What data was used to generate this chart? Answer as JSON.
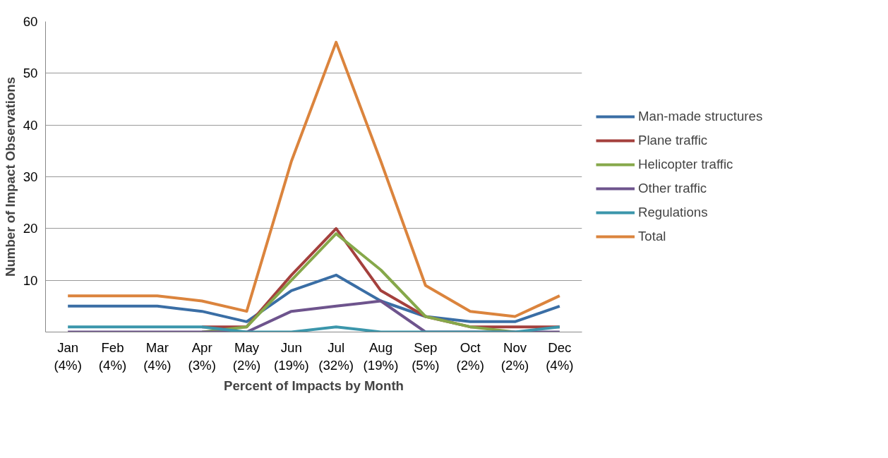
{
  "chart_data": {
    "type": "line",
    "xlabel": "Percent of Impacts by Month",
    "ylabel": "Number of Impact Observations",
    "categories": [
      "Jan\n(4%)",
      "Feb\n(4%)",
      "Mar\n(4%)",
      "Apr\n(3%)",
      "May\n(2%)",
      "Jun\n(19%)",
      "Jul\n(32%)",
      "Aug\n(19%)",
      "Sep\n(5%)",
      "Oct\n(2%)",
      "Nov\n(2%)",
      "Dec\n(4%)"
    ],
    "series": [
      {
        "name": "Man-made structures",
        "color": "#3a6ea5",
        "values": [
          5,
          5,
          5,
          4,
          2,
          8,
          11,
          6,
          3,
          2,
          2,
          5
        ]
      },
      {
        "name": "Plane traffic",
        "color": "#a4403d",
        "values": [
          null,
          null,
          null,
          1,
          1,
          11,
          20,
          8,
          3,
          1,
          1,
          1
        ]
      },
      {
        "name": "Helicopter traffic",
        "color": "#86a84a",
        "values": [
          null,
          null,
          null,
          0,
          1,
          10,
          19,
          12,
          3,
          1,
          0,
          null
        ]
      },
      {
        "name": "Other traffic",
        "color": "#6e548d",
        "values": [
          0,
          0,
          0,
          0,
          0,
          4,
          5,
          6,
          0,
          0,
          0,
          0
        ]
      },
      {
        "name": "Regulations",
        "color": "#3b96ab",
        "values": [
          1,
          1,
          1,
          1,
          0,
          0,
          1,
          0,
          0,
          0,
          0,
          1
        ]
      },
      {
        "name": "Total",
        "color": "#db843d",
        "values": [
          7,
          7,
          7,
          6,
          4,
          33,
          56,
          33,
          9,
          4,
          3,
          7
        ]
      }
    ],
    "ylim": [
      0,
      60
    ],
    "yticks": [
      10,
      20,
      30,
      40,
      50,
      60
    ],
    "grid": "y",
    "legend": "right",
    "marker": "none",
    "line_style": "solid"
  }
}
